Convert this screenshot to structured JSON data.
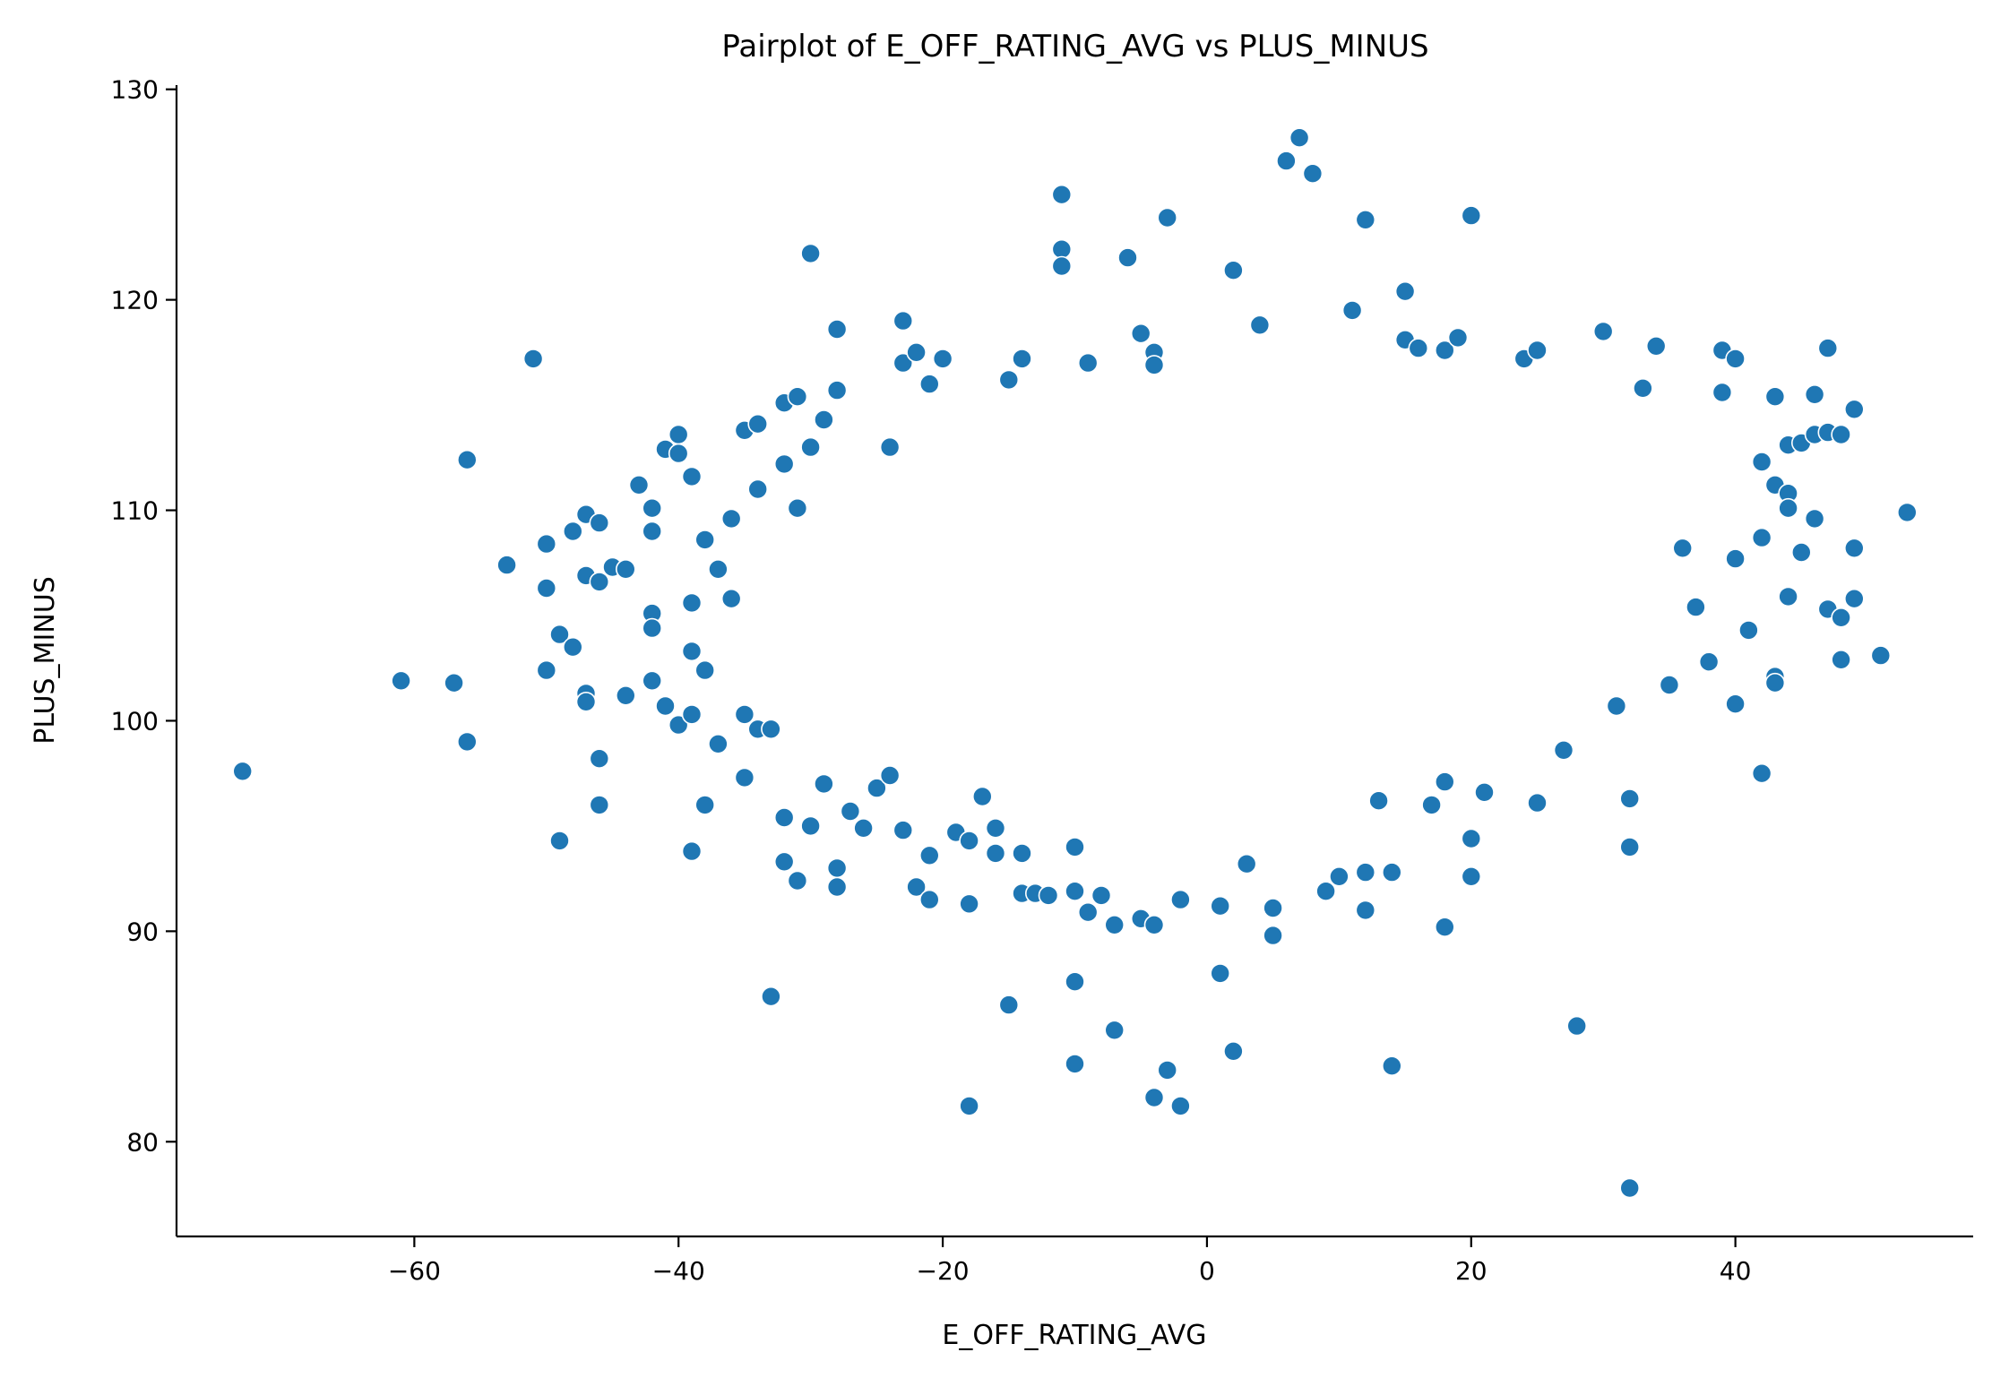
{
  "chart_data": {
    "type": "scatter",
    "title": "Pairplot of E_OFF_RATING_AVG vs PLUS_MINUS",
    "xlabel": "E_OFF_RATING_AVG",
    "ylabel": "PLUS_MINUS",
    "xlim": [
      -78,
      58
    ],
    "ylim": [
      75.5,
      130.2
    ],
    "xticks": [
      -60,
      -40,
      -20,
      0,
      20,
      40
    ],
    "xtick_labels": [
      "−60",
      "−40",
      "−20",
      "0",
      "20",
      "40"
    ],
    "yticks": [
      80,
      90,
      100,
      110,
      120,
      130
    ],
    "ytick_labels": [
      "80",
      "90",
      "100",
      "110",
      "120",
      "130"
    ],
    "grid": false,
    "legend": "none",
    "color": "#1f77b4",
    "points": [
      [
        -73,
        97.6
      ],
      [
        -61,
        101.9
      ],
      [
        -57,
        101.8
      ],
      [
        -56,
        112.4
      ],
      [
        -56,
        99.0
      ],
      [
        -53,
        107.4
      ],
      [
        -51,
        117.2
      ],
      [
        -50,
        108.4
      ],
      [
        -50,
        106.3
      ],
      [
        -50,
        102.4
      ],
      [
        -49,
        104.1
      ],
      [
        -49,
        94.3
      ],
      [
        -48,
        103.5
      ],
      [
        -48,
        109.0
      ],
      [
        -47,
        109.8
      ],
      [
        -47,
        106.9
      ],
      [
        -47,
        101.3
      ],
      [
        -47,
        100.9
      ],
      [
        -46,
        109.4
      ],
      [
        -46,
        106.6
      ],
      [
        -46,
        98.2
      ],
      [
        -46,
        96.0
      ],
      [
        -45,
        107.3
      ],
      [
        -44,
        107.2
      ],
      [
        -44,
        101.2
      ],
      [
        -43,
        111.2
      ],
      [
        -42,
        110.1
      ],
      [
        -42,
        109.0
      ],
      [
        -42,
        105.1
      ],
      [
        -42,
        104.4
      ],
      [
        -42,
        101.9
      ],
      [
        -41,
        112.9
      ],
      [
        -41,
        100.7
      ],
      [
        -40,
        113.6
      ],
      [
        -40,
        112.7
      ],
      [
        -40,
        99.8
      ],
      [
        -39,
        111.6
      ],
      [
        -39,
        105.6
      ],
      [
        -39,
        103.3
      ],
      [
        -39,
        100.3
      ],
      [
        -39,
        93.8
      ],
      [
        -38,
        96.0
      ],
      [
        -38,
        108.6
      ],
      [
        -38,
        102.4
      ],
      [
        -37,
        107.2
      ],
      [
        -37,
        98.9
      ],
      [
        -36,
        109.6
      ],
      [
        -36,
        105.8
      ],
      [
        -35,
        113.8
      ],
      [
        -35,
        97.3
      ],
      [
        -35,
        100.3
      ],
      [
        -34,
        114.1
      ],
      [
        -34,
        111.0
      ],
      [
        -34,
        99.6
      ],
      [
        -33,
        86.9
      ],
      [
        -33,
        99.6
      ],
      [
        -32,
        115.1
      ],
      [
        -32,
        112.2
      ],
      [
        -32,
        95.4
      ],
      [
        -32,
        93.3
      ],
      [
        -31,
        115.4
      ],
      [
        -31,
        110.1
      ],
      [
        -31,
        92.4
      ],
      [
        -30,
        113.0
      ],
      [
        -30,
        95.0
      ],
      [
        -30,
        122.2
      ],
      [
        -29,
        114.3
      ],
      [
        -29,
        97.0
      ],
      [
        -28,
        118.6
      ],
      [
        -28,
        115.7
      ],
      [
        -28,
        93.0
      ],
      [
        -28,
        92.1
      ],
      [
        -27,
        95.7
      ],
      [
        -26,
        94.9
      ],
      [
        -25,
        96.8
      ],
      [
        -24,
        113.0
      ],
      [
        -24,
        97.4
      ],
      [
        -23,
        119.0
      ],
      [
        -23,
        117.0
      ],
      [
        -23,
        94.8
      ],
      [
        -22,
        117.5
      ],
      [
        -22,
        92.1
      ],
      [
        -21,
        116.0
      ],
      [
        -21,
        93.6
      ],
      [
        -21,
        91.5
      ],
      [
        -20,
        117.2
      ],
      [
        -19,
        94.7
      ],
      [
        -18,
        91.3
      ],
      [
        -18,
        94.3
      ],
      [
        -18,
        81.7
      ],
      [
        -17,
        96.4
      ],
      [
        -16,
        94.9
      ],
      [
        -16,
        93.7
      ],
      [
        -15,
        86.5
      ],
      [
        -15,
        116.2
      ],
      [
        -14,
        117.2
      ],
      [
        -14,
        91.8
      ],
      [
        -14,
        93.7
      ],
      [
        -13,
        91.8
      ],
      [
        -12,
        91.7
      ],
      [
        -11,
        125.0
      ],
      [
        -11,
        122.4
      ],
      [
        -11,
        121.6
      ],
      [
        -10,
        94.0
      ],
      [
        -10,
        91.9
      ],
      [
        -10,
        87.6
      ],
      [
        -10,
        83.7
      ],
      [
        -9,
        117.0
      ],
      [
        -9,
        90.9
      ],
      [
        -8,
        91.7
      ],
      [
        -7,
        85.3
      ],
      [
        -7,
        90.3
      ],
      [
        -6,
        122.0
      ],
      [
        -5,
        118.4
      ],
      [
        -5,
        90.6
      ],
      [
        -4,
        117.5
      ],
      [
        -4,
        116.9
      ],
      [
        -4,
        90.3
      ],
      [
        -4,
        82.1
      ],
      [
        -3,
        123.9
      ],
      [
        -3,
        83.4
      ],
      [
        -2,
        81.7
      ],
      [
        -2,
        91.5
      ],
      [
        1,
        91.2
      ],
      [
        1,
        88.0
      ],
      [
        2,
        121.4
      ],
      [
        2,
        84.3
      ],
      [
        3,
        93.2
      ],
      [
        4,
        118.8
      ],
      [
        5,
        89.8
      ],
      [
        5,
        91.1
      ],
      [
        6,
        126.6
      ],
      [
        7,
        127.7
      ],
      [
        8,
        126.0
      ],
      [
        9,
        91.9
      ],
      [
        10,
        92.6
      ],
      [
        11,
        119.5
      ],
      [
        12,
        123.8
      ],
      [
        12,
        91.0
      ],
      [
        12,
        92.8
      ],
      [
        13,
        96.2
      ],
      [
        14,
        92.8
      ],
      [
        14,
        83.6
      ],
      [
        15,
        120.4
      ],
      [
        15,
        118.1
      ],
      [
        16,
        117.7
      ],
      [
        17,
        96.0
      ],
      [
        18,
        117.6
      ],
      [
        18,
        90.2
      ],
      [
        18,
        97.1
      ],
      [
        19,
        118.2
      ],
      [
        20,
        124.0
      ],
      [
        20,
        94.4
      ],
      [
        20,
        92.6
      ],
      [
        21,
        96.6
      ],
      [
        24,
        117.2
      ],
      [
        25,
        117.6
      ],
      [
        25,
        96.1
      ],
      [
        27,
        98.6
      ],
      [
        28,
        85.5
      ],
      [
        30,
        118.5
      ],
      [
        31,
        100.7
      ],
      [
        32,
        96.3
      ],
      [
        32,
        94.0
      ],
      [
        32,
        77.8
      ],
      [
        33,
        115.8
      ],
      [
        34,
        117.8
      ],
      [
        35,
        101.7
      ],
      [
        36,
        108.2
      ],
      [
        37,
        105.4
      ],
      [
        38,
        102.8
      ],
      [
        39,
        117.6
      ],
      [
        39,
        115.6
      ],
      [
        40,
        117.2
      ],
      [
        40,
        100.8
      ],
      [
        40,
        107.7
      ],
      [
        41,
        104.3
      ],
      [
        42,
        112.3
      ],
      [
        42,
        97.5
      ],
      [
        42,
        108.7
      ],
      [
        43,
        115.4
      ],
      [
        43,
        102.1
      ],
      [
        43,
        101.8
      ],
      [
        43,
        111.2
      ],
      [
        44,
        110.8
      ],
      [
        44,
        110.1
      ],
      [
        44,
        105.9
      ],
      [
        44,
        113.1
      ],
      [
        45,
        113.2
      ],
      [
        45,
        108.0
      ],
      [
        46,
        115.5
      ],
      [
        46,
        113.6
      ],
      [
        46,
        109.6
      ],
      [
        47,
        117.7
      ],
      [
        47,
        113.7
      ],
      [
        47,
        105.3
      ],
      [
        48,
        113.6
      ],
      [
        48,
        104.9
      ],
      [
        48,
        102.9
      ],
      [
        49,
        114.8
      ],
      [
        49,
        108.2
      ],
      [
        49,
        105.8
      ],
      [
        51,
        103.1
      ],
      [
        53,
        109.9
      ]
    ]
  }
}
